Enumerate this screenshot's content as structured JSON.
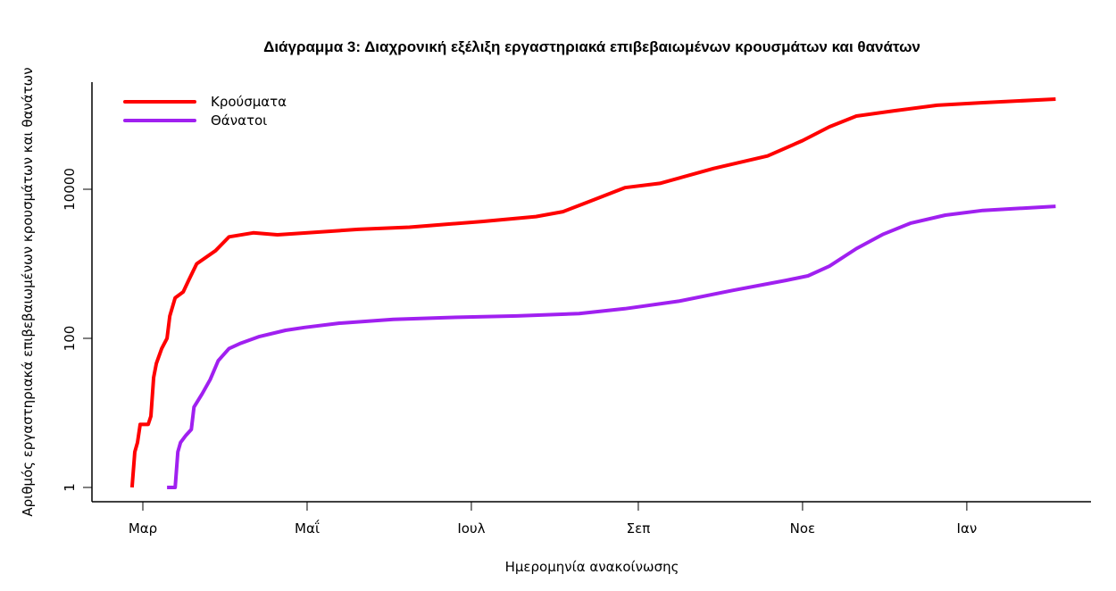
{
  "chart_data": {
    "type": "line",
    "title": "Διάγραμμα 3: Διαχρονική εξέλιξη εργαστηριακά επιβεβαιωμένων κρουσμάτων και θανάτων",
    "xlabel": "Ημερομηνία ανακοίνωσης",
    "ylabel": "Αριθμός εργαστηριακά επιβεβαιωμένων κρουσμάτων και θανάτων",
    "x_unit": "days since 1 March",
    "xlim": [
      -19,
      352
    ],
    "y_scale": "log10",
    "ylim": [
      0.9,
      230000
    ],
    "x_ticks": [
      {
        "day": 0,
        "label": "Μαρ"
      },
      {
        "day": 61,
        "label": "Μαΐ"
      },
      {
        "day": 122,
        "label": "Ιουλ"
      },
      {
        "day": 184,
        "label": "Σεπ"
      },
      {
        "day": 245,
        "label": "Νοε"
      },
      {
        "day": 306,
        "label": "Ιαν"
      }
    ],
    "y_ticks": [
      {
        "value": 1,
        "label": "1"
      },
      {
        "value": 100,
        "label": "100"
      },
      {
        "value": 10000,
        "label": "10000"
      }
    ],
    "legend_position": "top-left",
    "grid": false,
    "series": [
      {
        "name": "Κρούσματα",
        "color": "#ff0000",
        "x": [
          -4,
          -3,
          -2,
          -1,
          2,
          3,
          4,
          5,
          7,
          9,
          10,
          12,
          15,
          17,
          20,
          27,
          32,
          41,
          50,
          80,
          99,
          126,
          146,
          156,
          166,
          179,
          192,
          212,
          232,
          245,
          255,
          265,
          279,
          295,
          312,
          339
        ],
        "y": [
          1,
          3,
          4,
          7,
          7,
          9,
          30,
          46,
          73,
          100,
          200,
          350,
          420,
          600,
          1000,
          1500,
          2300,
          2600,
          2450,
          2900,
          3100,
          3700,
          4300,
          5000,
          6900,
          10500,
          12000,
          19000,
          28000,
          45000,
          69000,
          96000,
          113000,
          134000,
          145000,
          162000
        ]
      },
      {
        "name": "Θάνατοι",
        "color": "#a020f0",
        "x": [
          9,
          12,
          13,
          14,
          16,
          18,
          19,
          22,
          25,
          28,
          32,
          36,
          43,
          53,
          60,
          73,
          93,
          113,
          139,
          162,
          179,
          199,
          219,
          239,
          247,
          255,
          265,
          275,
          285,
          298,
          312,
          339
        ],
        "y": [
          1,
          1,
          3,
          4,
          5,
          6,
          12,
          18,
          28,
          50,
          73,
          85,
          105,
          128,
          140,
          160,
          180,
          190,
          200,
          215,
          250,
          315,
          440,
          600,
          690,
          930,
          1600,
          2500,
          3500,
          4500,
          5200,
          5900
        ]
      }
    ]
  }
}
